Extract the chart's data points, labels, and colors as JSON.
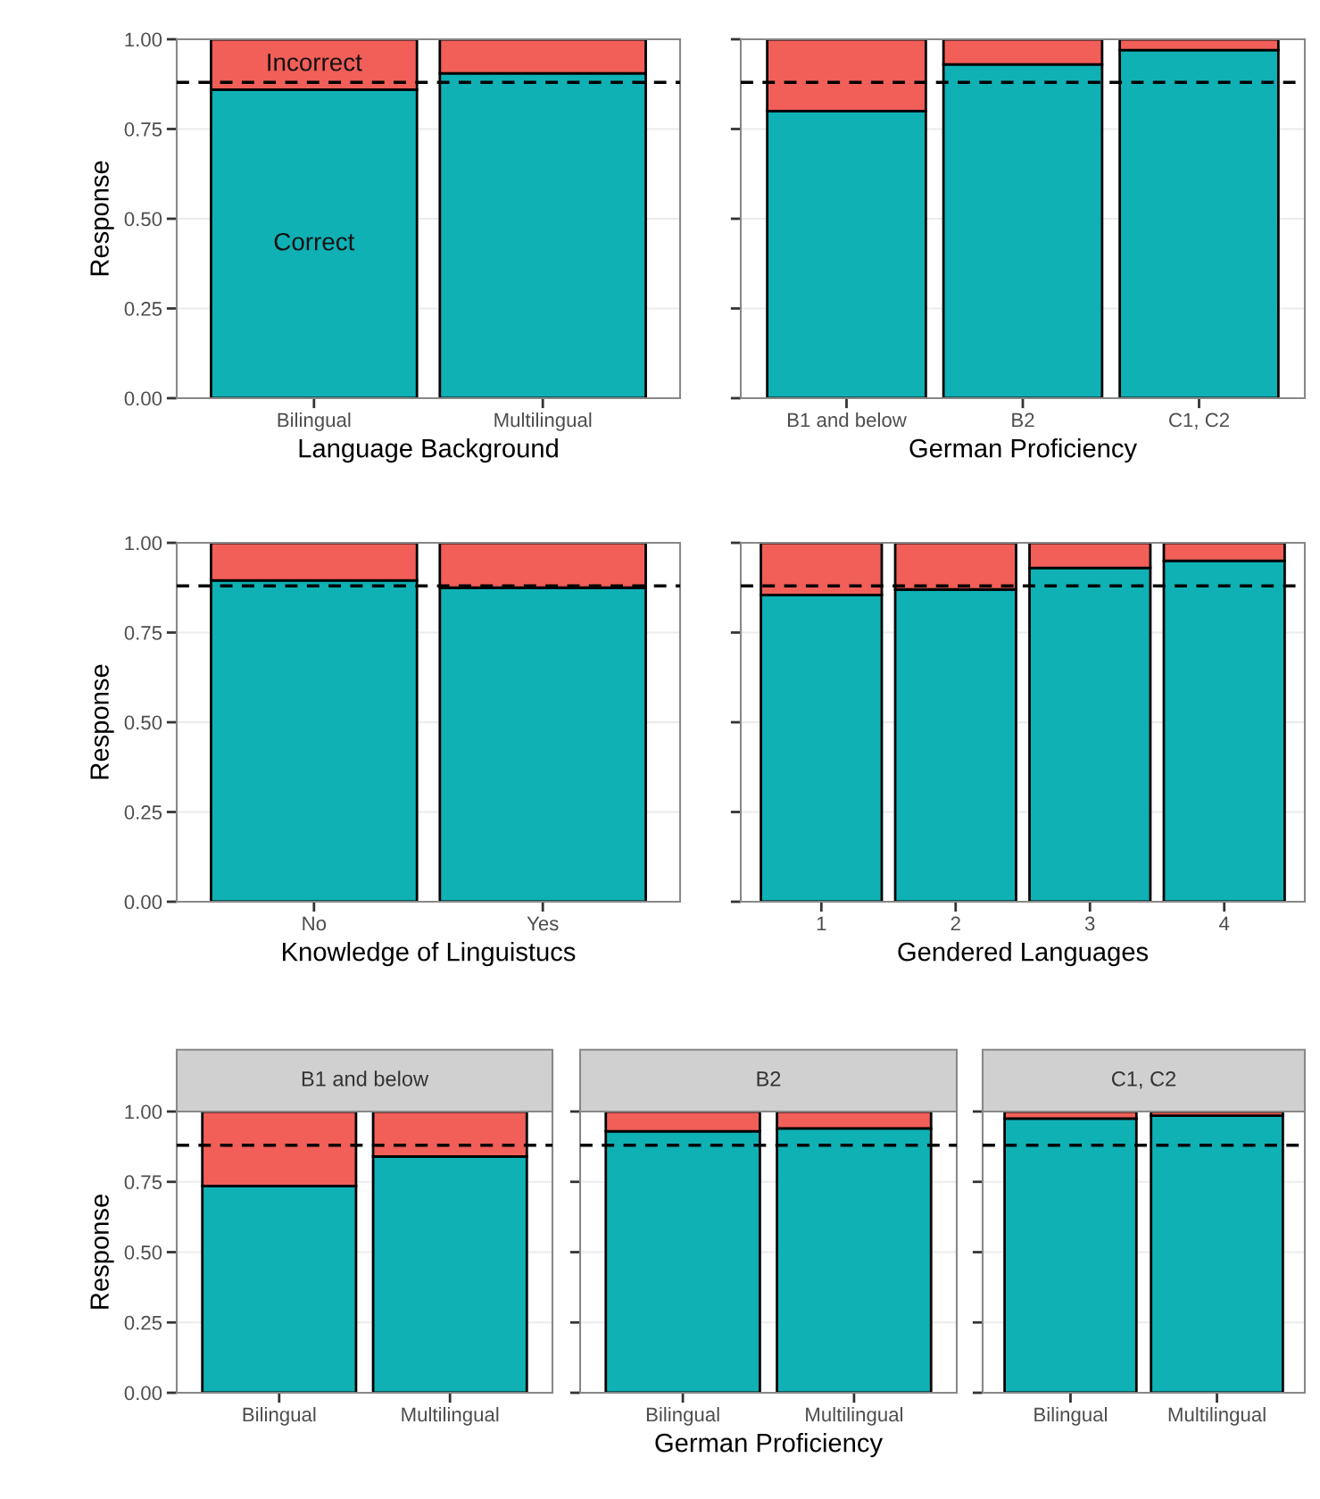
{
  "chart_data": [
    {
      "type": "bar",
      "stacked": true,
      "xlabel": "Language Background",
      "ylabel": "Response",
      "categories": [
        "Bilingual",
        "Multilingual"
      ],
      "series": [
        {
          "name": "Correct",
          "color": "#0fb1b5",
          "values": [
            0.86,
            0.905
          ]
        },
        {
          "name": "Incorrect",
          "color": "#f15f58",
          "values": [
            0.14,
            0.095
          ]
        }
      ],
      "ylim": [
        0,
        1
      ],
      "yticks": [
        {
          "value": 0,
          "label": "0.00"
        },
        {
          "value": 0.25,
          "label": "0.25"
        },
        {
          "value": 0.5,
          "label": "0.50"
        },
        {
          "value": 0.75,
          "label": "0.75"
        },
        {
          "value": 1,
          "label": "1.00"
        }
      ],
      "ref_lines": [
        {
          "axis": "y",
          "value": 0.88,
          "color": "#000000",
          "line_style": "dashed"
        }
      ],
      "grid": true,
      "legend": false
    },
    {
      "type": "bar",
      "stacked": true,
      "xlabel": "German Proficiency",
      "categories": [
        "B1 and below",
        "B2",
        "C1, C2"
      ],
      "series": [
        {
          "color": "#0fb1b5",
          "values": [
            0.8,
            0.93,
            0.97
          ]
        },
        {
          "color": "#f15f58",
          "values": [
            0.2,
            0.07,
            0.03
          ]
        }
      ],
      "ylim": [
        0,
        1
      ],
      "yticks": [
        0,
        0.25,
        0.5,
        0.75,
        1
      ],
      "tick_labels": "x",
      "ref_lines": [
        {
          "axis": "y",
          "value": 0.88,
          "color": "#000000",
          "line_style": "dashed"
        }
      ],
      "grid": true,
      "legend": false
    },
    {
      "type": "bar",
      "stacked": true,
      "xlabel": "Knowledge of Linguistucs",
      "ylabel": "Response",
      "categories": [
        "No",
        "Yes"
      ],
      "series": [
        {
          "color": "#0fb1b5",
          "values": [
            0.895,
            0.875
          ]
        },
        {
          "color": "#f15f58",
          "values": [
            0.105,
            0.125
          ]
        }
      ],
      "ylim": [
        0,
        1
      ],
      "yticks": [
        {
          "value": 0,
          "label": "0.00"
        },
        {
          "value": 0.25,
          "label": "0.25"
        },
        {
          "value": 0.5,
          "label": "0.50"
        },
        {
          "value": 0.75,
          "label": "0.75"
        },
        {
          "value": 1,
          "label": "1.00"
        }
      ],
      "ref_lines": [
        {
          "axis": "y",
          "value": 0.88,
          "color": "#000000",
          "line_style": "dashed"
        }
      ],
      "grid": true,
      "legend": false
    },
    {
      "type": "bar",
      "stacked": true,
      "xlabel": "Gendered Languages",
      "categories": [
        "1",
        "2",
        "3",
        "4"
      ],
      "series": [
        {
          "color": "#0fb1b5",
          "values": [
            0.855,
            0.87,
            0.93,
            0.95
          ]
        },
        {
          "color": "#f15f58",
          "values": [
            0.145,
            0.13,
            0.07,
            0.05
          ]
        }
      ],
      "ylim": [
        0,
        1
      ],
      "yticks": [
        0,
        0.25,
        0.5,
        0.75,
        1
      ],
      "tick_labels": "x",
      "ref_lines": [
        {
          "axis": "y",
          "value": 0.88,
          "color": "#000000",
          "line_style": "dashed"
        }
      ],
      "grid": true,
      "legend": false
    },
    {
      "type": "bar",
      "stacked": true,
      "title": "B1 and below",
      "ylabel": "Response",
      "categories": [
        "Bilingual",
        "Multilingual"
      ],
      "series": [
        {
          "color": "#0fb1b5",
          "values": [
            0.735,
            0.84
          ]
        },
        {
          "color": "#f15f58",
          "values": [
            0.265,
            0.16
          ]
        }
      ],
      "ylim": [
        0,
        1
      ],
      "yticks": [
        {
          "value": 0,
          "label": "0.00"
        },
        {
          "value": 0.25,
          "label": "0.25"
        },
        {
          "value": 0.5,
          "label": "0.50"
        },
        {
          "value": 0.75,
          "label": "0.75"
        },
        {
          "value": 1,
          "label": "1.00"
        }
      ],
      "ref_lines": [
        {
          "axis": "y",
          "value": 0.88,
          "color": "#000000",
          "line_style": "dashed"
        }
      ],
      "grid": true,
      "legend": false
    },
    {
      "type": "bar",
      "stacked": true,
      "title": "B2",
      "xlabel": "German Proficiency",
      "categories": [
        "Bilingual",
        "Multilingual"
      ],
      "series": [
        {
          "color": "#0fb1b5",
          "values": [
            0.93,
            0.94
          ]
        },
        {
          "color": "#f15f58",
          "values": [
            0.07,
            0.06
          ]
        }
      ],
      "ylim": [
        0,
        1
      ],
      "yticks": [
        0,
        0.25,
        0.5,
        0.75,
        1
      ],
      "tick_labels": "x",
      "ref_lines": [
        {
          "axis": "y",
          "value": 0.88,
          "color": "#000000",
          "line_style": "dashed"
        }
      ],
      "grid": true,
      "legend": false
    },
    {
      "type": "bar",
      "stacked": true,
      "title": "C1, C2",
      "categories": [
        "Bilingual",
        "Multilingual"
      ],
      "series": [
        {
          "color": "#0fb1b5",
          "values": [
            0.975,
            0.985
          ]
        },
        {
          "color": "#f15f58",
          "values": [
            0.025,
            0.015
          ]
        }
      ],
      "ylim": [
        0,
        1
      ],
      "yticks": [
        0,
        0.25,
        0.5,
        0.75,
        1
      ],
      "tick_labels": "x",
      "ref_lines": [
        {
          "axis": "y",
          "value": 0.88,
          "color": "#000000",
          "line_style": "dashed"
        }
      ],
      "grid": true,
      "legend": false
    }
  ]
}
